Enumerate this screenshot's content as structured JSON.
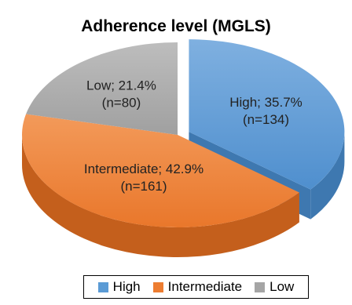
{
  "chart_data": {
    "type": "pie",
    "style": "3d",
    "title": "Adherence level (MGLS)",
    "categories": [
      "High",
      "Intermediate",
      "Low"
    ],
    "values": [
      35.7,
      42.9,
      21.4
    ],
    "counts": [
      134,
      161,
      80
    ],
    "labels": [
      {
        "line1": "High; 35.7%",
        "line2": "(n=134)"
      },
      {
        "line1": "Intermediate; 42.9%",
        "line2": "(n=161)"
      },
      {
        "line1": "Low; 21.4%",
        "line2": "(n=80)"
      }
    ],
    "colors": [
      "#5B9BD5",
      "#ED7D31",
      "#A5A5A5"
    ],
    "exploded": [
      "High"
    ],
    "legend": {
      "position": "bottom",
      "items": [
        "High",
        "Intermediate",
        "Low"
      ]
    }
  }
}
